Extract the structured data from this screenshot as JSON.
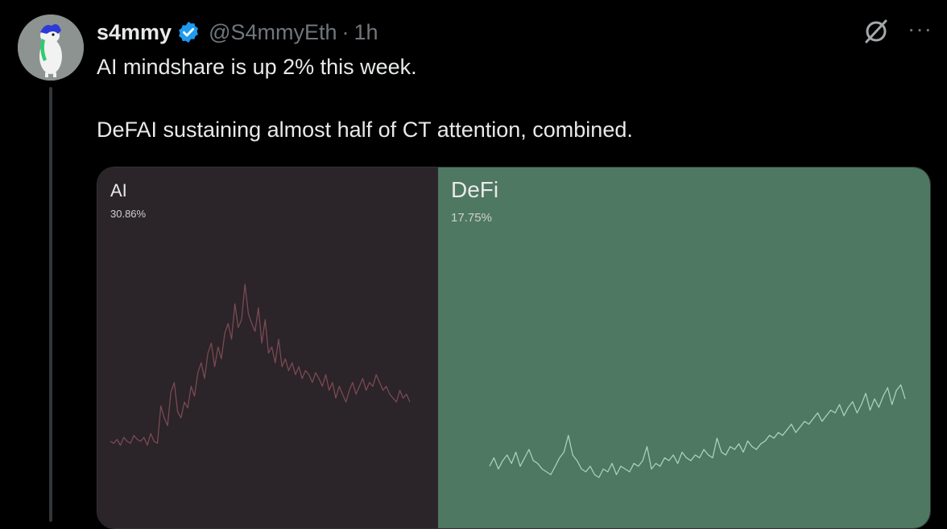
{
  "tweet": {
    "display_name": "s4mmy",
    "handle": "@S4mmyEth",
    "separator": "·",
    "time": "1h",
    "text_line1": "AI mindshare is up 2% this week.",
    "text_line2": "DeFAI sustaining almost half of CT attention, combined.",
    "verified_color": "#1d9bf0",
    "icons": {
      "grok": "grok-icon",
      "more": "more-icon",
      "verified": "verified-badge-icon"
    },
    "more_glyph": "···"
  },
  "media": {
    "panels": [
      {
        "title": "AI",
        "value": "30.86%",
        "background": "#2b2429",
        "line_color": "#7a4a52"
      },
      {
        "title": "DeFi",
        "value": "17.75%",
        "background": "#4e7861",
        "line_color": "#a6d2b6"
      }
    ]
  },
  "chart_data": [
    {
      "type": "line",
      "title": "AI",
      "subtitle": "30.86%",
      "values": [
        10,
        9,
        11,
        8,
        12,
        10,
        9,
        13,
        11,
        10,
        12,
        8,
        14,
        10,
        9,
        28,
        22,
        18,
        35,
        40,
        25,
        22,
        30,
        27,
        38,
        33,
        45,
        50,
        42,
        55,
        60,
        48,
        58,
        52,
        65,
        70,
        62,
        80,
        68,
        72,
        90,
        75,
        70,
        66,
        78,
        60,
        72,
        55,
        58,
        50,
        62,
        48,
        52,
        46,
        50,
        44,
        48,
        42,
        46,
        44,
        40,
        45,
        42,
        38,
        44,
        36,
        40,
        32,
        38,
        34,
        30,
        36,
        40,
        34,
        38,
        42,
        36,
        40,
        38,
        44,
        40,
        36,
        38,
        34,
        32,
        30,
        36,
        32,
        34,
        30
      ],
      "grid": false
    },
    {
      "type": "line",
      "title": "DeFi",
      "subtitle": "17.75%",
      "values": [
        12,
        18,
        10,
        16,
        20,
        14,
        22,
        12,
        18,
        24,
        16,
        14,
        10,
        8,
        6,
        12,
        18,
        22,
        34,
        20,
        16,
        10,
        8,
        12,
        6,
        4,
        10,
        8,
        14,
        6,
        12,
        10,
        8,
        14,
        12,
        16,
        26,
        10,
        14,
        12,
        18,
        16,
        20,
        14,
        22,
        18,
        16,
        20,
        18,
        24,
        20,
        18,
        32,
        22,
        20,
        26,
        24,
        28,
        22,
        30,
        26,
        24,
        28,
        30,
        34,
        32,
        36,
        34,
        38,
        42,
        36,
        40,
        44,
        42,
        46,
        50,
        44,
        48,
        52,
        50,
        56,
        48,
        54,
        58,
        50,
        56,
        64,
        52,
        60,
        54,
        62,
        68,
        56,
        66,
        70,
        60
      ]
    }
  ]
}
